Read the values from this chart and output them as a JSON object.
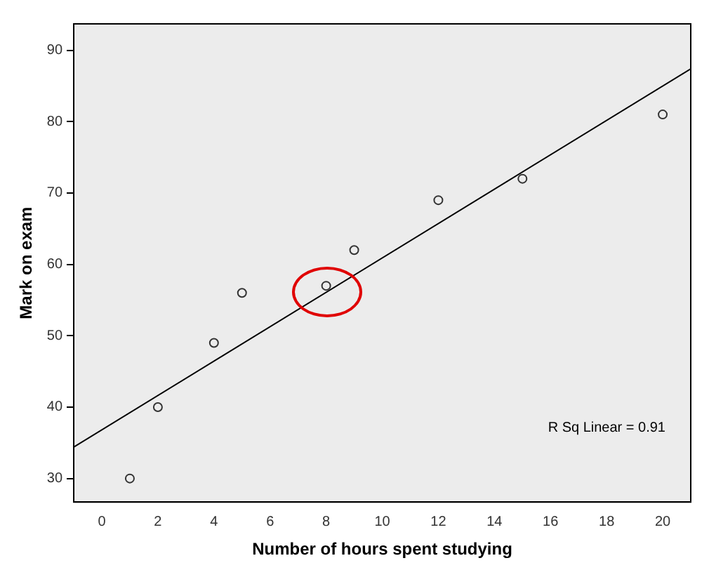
{
  "chart_data": {
    "type": "scatter",
    "xlabel": "Number of hours spent studying",
    "ylabel": "Mark on exam",
    "annotations": [
      "R Sq Linear = 0.91"
    ],
    "xlim": [
      -1,
      21
    ],
    "ylim": [
      26.7,
      93.7
    ],
    "xticks": [
      0,
      2,
      4,
      6,
      8,
      10,
      12,
      14,
      16,
      18,
      20
    ],
    "yticks": [
      30,
      40,
      50,
      60,
      70,
      80,
      90
    ],
    "grid": false,
    "legend": false,
    "marker": "circle",
    "series": [
      {
        "color": "#333333",
        "x": [
          1,
          2,
          4,
          5,
          8,
          9,
          12,
          15,
          20
        ],
        "values": [
          30,
          40,
          49,
          56,
          57,
          62,
          69,
          72,
          81
        ]
      },
      {
        "type": "line",
        "color": "#000000",
        "x": [
          -1,
          21
        ],
        "values": [
          34.4,
          87.4
        ],
        "marker": "none"
      }
    ]
  }
}
